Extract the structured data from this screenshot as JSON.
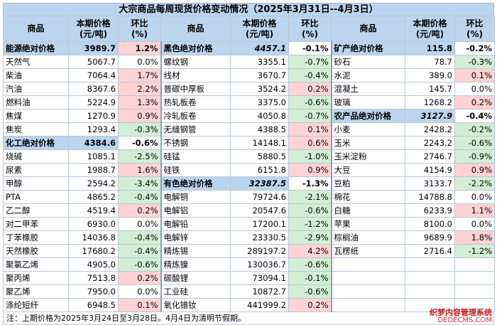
{
  "title": "大宗商品每周现货价格变动情况（2025年3月31日--4月3日）",
  "headers": {
    "name": "商品",
    "price_l1": "本期价格",
    "price_l2": "(元/吨)",
    "chg_l1": "环比",
    "chg_l2": "(%)"
  },
  "columns": [
    {
      "rows": [
        {
          "name": "能源绝对价格",
          "price": "3989.7",
          "chg": "1.2%",
          "trend": "up",
          "cat": true
        },
        {
          "name": "天然气",
          "price": "5067.7",
          "chg": "0.0%",
          "trend": "flat"
        },
        {
          "name": "柴油",
          "price": "7064.4",
          "chg": "1.7%",
          "trend": "up"
        },
        {
          "name": "汽油",
          "price": "8367.6",
          "chg": "2.2%",
          "trend": "up"
        },
        {
          "name": "燃料油",
          "price": "5224.9",
          "chg": "1.3%",
          "trend": "up"
        },
        {
          "name": "焦煤",
          "price": "1270.9",
          "chg": "0.9%",
          "trend": "up"
        },
        {
          "name": "焦炭",
          "price": "1293.4",
          "chg": "-0.3%",
          "trend": "down"
        },
        {
          "name": "化工绝对价格",
          "price": "4384.6",
          "chg": "-0.6%",
          "trend": "down",
          "cat": true
        },
        {
          "name": "烧碱",
          "price": "1085.1",
          "chg": "-2.5%",
          "trend": "down"
        },
        {
          "name": "尿素",
          "price": "1988.7",
          "chg": "1.6%",
          "trend": "up"
        },
        {
          "name": "甲醇",
          "price": "2594.2",
          "chg": "-3.4%",
          "trend": "down"
        },
        {
          "name": "PTA",
          "price": "4865.2",
          "chg": "-0.4%",
          "trend": "down"
        },
        {
          "name": "乙二醇",
          "price": "4519.4",
          "chg": "0.2%",
          "trend": "up"
        },
        {
          "name": "对二甲苯",
          "price": "6930.0",
          "chg": "0.0%",
          "trend": "flat"
        },
        {
          "name": "丁苯橡胶",
          "price": "14036.8",
          "chg": "-0.4%",
          "trend": "down"
        },
        {
          "name": "天然橡胶",
          "price": "17680.2",
          "chg": "-0.4%",
          "trend": "down"
        },
        {
          "name": "聚氯乙烯",
          "price": "4905.0",
          "chg": "-0.6%",
          "trend": "down"
        },
        {
          "name": "聚丙烯",
          "price": "7513.8",
          "chg": "0.2%",
          "trend": "up"
        },
        {
          "name": "聚乙烯",
          "price": "7950.0",
          "chg": "0.0%",
          "trend": "flat"
        },
        {
          "name": "涤纶短纤",
          "price": "6948.5",
          "chg": "0.1%",
          "trend": "up"
        }
      ]
    },
    {
      "rows": [
        {
          "name": "黑色绝对价格",
          "price": "4457.1",
          "chg": "-0.1%",
          "trend": "down",
          "cat": true,
          "italic": true
        },
        {
          "name": "螺纹钢",
          "price": "3355.1",
          "chg": "-0.7%",
          "trend": "down"
        },
        {
          "name": "线材",
          "price": "3670.7",
          "chg": "-0.4%",
          "trend": "down"
        },
        {
          "name": "普碳中厚板",
          "price": "3524.2",
          "chg": "0.2%",
          "trend": "up"
        },
        {
          "name": "热轧板卷",
          "price": "3375.0",
          "chg": "-0.6%",
          "trend": "down"
        },
        {
          "name": "冷轧板卷",
          "price": "4050.8",
          "chg": "-0.7%",
          "trend": "down"
        },
        {
          "name": "无缝钢管",
          "price": "4388.5",
          "chg": "0.1%",
          "trend": "up"
        },
        {
          "name": "不锈钢",
          "price": "14148.1",
          "chg": "0.6%",
          "trend": "up"
        },
        {
          "name": "硅锰",
          "price": "5880.5",
          "chg": "-1.0%",
          "trend": "down"
        },
        {
          "name": "硅铁",
          "price": "6151.8",
          "chg": "0.9%",
          "trend": "up"
        },
        {
          "name": "有色绝对价格",
          "price": "32387.5",
          "chg": "-1.3%",
          "trend": "down",
          "cat": true,
          "italic": true
        },
        {
          "name": "电解铜",
          "price": "79724.6",
          "chg": "-2.1%",
          "trend": "down"
        },
        {
          "name": "电解铝",
          "price": "20547.6",
          "chg": "-0.6%",
          "trend": "down"
        },
        {
          "name": "电解铅",
          "price": "17200.1",
          "chg": "-1.2%",
          "trend": "down"
        },
        {
          "name": "电解锌",
          "price": "23330.5",
          "chg": "-2.9%",
          "trend": "down"
        },
        {
          "name": "精炼锡",
          "price": "289197.2",
          "chg": "4.2%",
          "trend": "up"
        },
        {
          "name": "精炼镍",
          "price": "130036.7",
          "chg": "-0.6%",
          "trend": "down"
        },
        {
          "name": "碳酸锂",
          "price": "73094.1",
          "chg": "-0.1%",
          "trend": "down"
        },
        {
          "name": "工业硅",
          "price": "10872.7",
          "chg": "-0.6%",
          "trend": "down"
        },
        {
          "name": "氧化镨钕",
          "price": "441999.2",
          "chg": "0.2%",
          "trend": "up"
        }
      ]
    },
    {
      "rows": [
        {
          "name": "矿产绝对价格",
          "price": "115.8",
          "chg": "-0.2%",
          "trend": "down",
          "cat": true
        },
        {
          "name": "砂石",
          "price": "78.7",
          "chg": "-0.3%",
          "trend": "down"
        },
        {
          "name": "水泥",
          "price": "389.0",
          "chg": "0.1%",
          "trend": "up"
        },
        {
          "name": "混凝土",
          "price": "145.7",
          "chg": "0.0%",
          "trend": "flat"
        },
        {
          "name": "玻璃",
          "price": "1268.2",
          "chg": "0.2%",
          "trend": "up"
        },
        {
          "name": "农产品绝对价格",
          "price": "3127.9",
          "chg": "-0.4%",
          "trend": "down",
          "cat": true,
          "italic": true
        },
        {
          "name": "小麦",
          "price": "2428.2",
          "chg": "-0.2%",
          "trend": "down"
        },
        {
          "name": "玉米",
          "price": "2243.2",
          "chg": "-0.6%",
          "trend": "down"
        },
        {
          "name": "玉米淀粉",
          "price": "2746.7",
          "chg": "-0.9%",
          "trend": "down"
        },
        {
          "name": "大豆",
          "price": "4154.9",
          "chg": "0.9%",
          "trend": "up"
        },
        {
          "name": "豆粕",
          "price": "3133.7",
          "chg": "-2.2%",
          "trend": "down"
        },
        {
          "name": "棉花",
          "price": "14788.8",
          "chg": "0.0%",
          "trend": "flat"
        },
        {
          "name": "白糖",
          "price": "6233.9",
          "chg": "1.1%",
          "trend": "up"
        },
        {
          "name": "苹果",
          "price": "8100.0",
          "chg": "0.0%",
          "trend": "flat"
        },
        {
          "name": "棕榈油",
          "price": "9689.9",
          "chg": "1.8%",
          "trend": "up"
        },
        {
          "name": "瓦楞纸",
          "price": "2716.4",
          "chg": "-1.2%",
          "trend": "down"
        },
        {
          "name": "",
          "price": "",
          "chg": "",
          "trend": "flat"
        },
        {
          "name": "",
          "price": "",
          "chg": "",
          "trend": "flat"
        },
        {
          "name": "",
          "price": "",
          "chg": "",
          "trend": "flat"
        },
        {
          "name": "",
          "price": "",
          "chg": "",
          "trend": "flat"
        }
      ]
    }
  ],
  "footnote": "注：上期价格为2025年3月24日至3月28日。4月4日为清明节假期。",
  "watermark": {
    "line1": "织梦内容管理系统",
    "line2": "DEDECMS.COM"
  },
  "colors": {
    "header_bg": "#bcd5ee",
    "up": "#ffd3d3",
    "down": "#d3efd3"
  }
}
